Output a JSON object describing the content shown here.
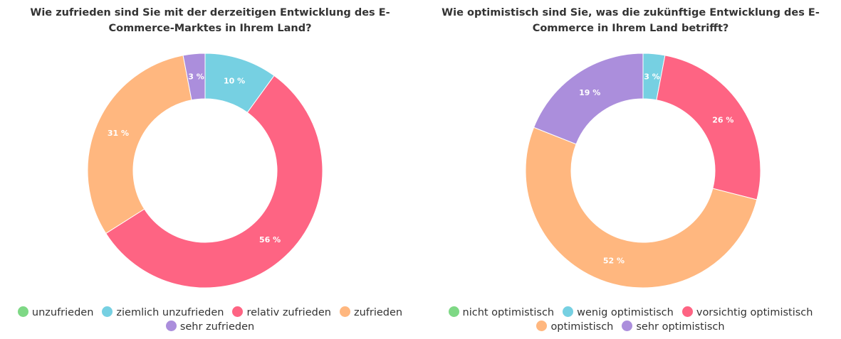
{
  "chart_data": [
    {
      "type": "pie",
      "title": "Wie zufrieden sind Sie mit der derzeitigen Entwicklung des E-Commerce-Marktes in Ihrem Land?",
      "categories": [
        "unzufrieden",
        "ziemlich unzufrieden",
        "relativ zufrieden",
        "zufrieden",
        "sehr zufrieden"
      ],
      "values": [
        0,
        10,
        56,
        31,
        3
      ],
      "labels": [
        "",
        "10 %",
        "56 %",
        "31 %",
        "3 %"
      ],
      "colors": [
        "#7ed885",
        "#76d0e2",
        "#fe6483",
        "#ffb77f",
        "#ab8edc"
      ],
      "legend": "bottom"
    },
    {
      "type": "pie",
      "title": "Wie optimistisch sind Sie, was die zukünftige Entwicklung des E-Commerce in Ihrem Land betrifft?",
      "categories": [
        "nicht optimistisch",
        "wenig optimistisch",
        "vorsichtig optimistisch",
        "optimistisch",
        "sehr optimistisch"
      ],
      "values": [
        0,
        3,
        26,
        52,
        19
      ],
      "labels": [
        "",
        "3 %",
        "26 %",
        "52 %",
        "19 %"
      ],
      "colors": [
        "#7ed885",
        "#76d0e2",
        "#fe6483",
        "#ffb77f",
        "#ab8edc"
      ],
      "legend": "bottom"
    }
  ]
}
